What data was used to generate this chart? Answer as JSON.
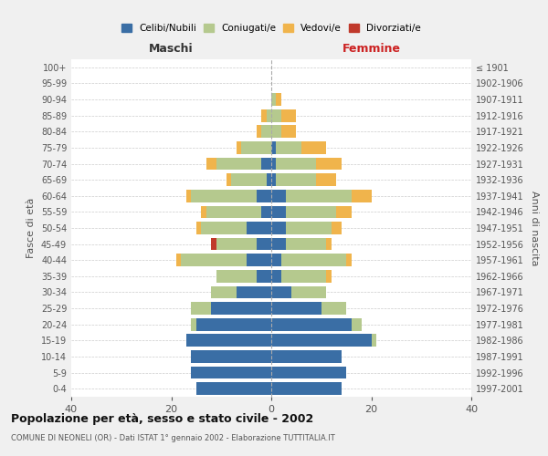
{
  "age_groups": [
    "0-4",
    "5-9",
    "10-14",
    "15-19",
    "20-24",
    "25-29",
    "30-34",
    "35-39",
    "40-44",
    "45-49",
    "50-54",
    "55-59",
    "60-64",
    "65-69",
    "70-74",
    "75-79",
    "80-84",
    "85-89",
    "90-94",
    "95-99",
    "100+"
  ],
  "birth_years": [
    "1997-2001",
    "1992-1996",
    "1987-1991",
    "1982-1986",
    "1977-1981",
    "1972-1976",
    "1967-1971",
    "1962-1966",
    "1957-1961",
    "1952-1956",
    "1947-1951",
    "1942-1946",
    "1937-1941",
    "1932-1936",
    "1927-1931",
    "1922-1926",
    "1917-1921",
    "1912-1916",
    "1907-1911",
    "1902-1906",
    "≤ 1901"
  ],
  "male": {
    "celibi": [
      15,
      16,
      16,
      17,
      15,
      12,
      7,
      3,
      5,
      3,
      5,
      2,
      3,
      1,
      2,
      0,
      0,
      0,
      0,
      0,
      0
    ],
    "coniugati": [
      0,
      0,
      0,
      0,
      1,
      4,
      5,
      8,
      13,
      8,
      9,
      11,
      13,
      7,
      9,
      6,
      2,
      1,
      0,
      0,
      0
    ],
    "vedovi": [
      0,
      0,
      0,
      0,
      0,
      0,
      0,
      0,
      1,
      0,
      1,
      1,
      1,
      1,
      2,
      1,
      1,
      1,
      0,
      0,
      0
    ],
    "divorziati": [
      0,
      0,
      0,
      0,
      0,
      0,
      0,
      0,
      0,
      1,
      0,
      0,
      0,
      0,
      0,
      0,
      0,
      0,
      0,
      0,
      0
    ]
  },
  "female": {
    "nubili": [
      14,
      15,
      14,
      20,
      16,
      10,
      4,
      2,
      2,
      3,
      3,
      3,
      3,
      1,
      1,
      1,
      0,
      0,
      0,
      0,
      0
    ],
    "coniugate": [
      0,
      0,
      0,
      1,
      2,
      5,
      7,
      9,
      13,
      8,
      9,
      10,
      13,
      8,
      8,
      5,
      2,
      2,
      1,
      0,
      0
    ],
    "vedove": [
      0,
      0,
      0,
      0,
      0,
      0,
      0,
      1,
      1,
      1,
      2,
      3,
      4,
      4,
      5,
      5,
      3,
      3,
      1,
      0,
      0
    ],
    "divorziate": [
      0,
      0,
      0,
      0,
      0,
      0,
      0,
      0,
      0,
      0,
      0,
      0,
      0,
      0,
      0,
      0,
      0,
      0,
      0,
      0,
      0
    ]
  },
  "colors": {
    "celibi_nubili": "#3a6ea5",
    "coniugati": "#b5c98e",
    "vedovi": "#f0b44c",
    "divorziati": "#c0392b"
  },
  "xlim": 40,
  "title": "Popolazione per età, sesso e stato civile - 2002",
  "subtitle": "COMUNE DI NEONELI (OR) - Dati ISTAT 1° gennaio 2002 - Elaborazione TUTTITALIA.IT",
  "xlabel_left": "Maschi",
  "xlabel_right": "Femmine",
  "ylabel_left": "Fasce di età",
  "ylabel_right": "Anni di nascita",
  "legend_labels": [
    "Celibi/Nubili",
    "Coniugati/e",
    "Vedovi/e",
    "Divorziati/e"
  ],
  "bg_color": "#f0f0f0",
  "plot_bg_color": "#ffffff"
}
